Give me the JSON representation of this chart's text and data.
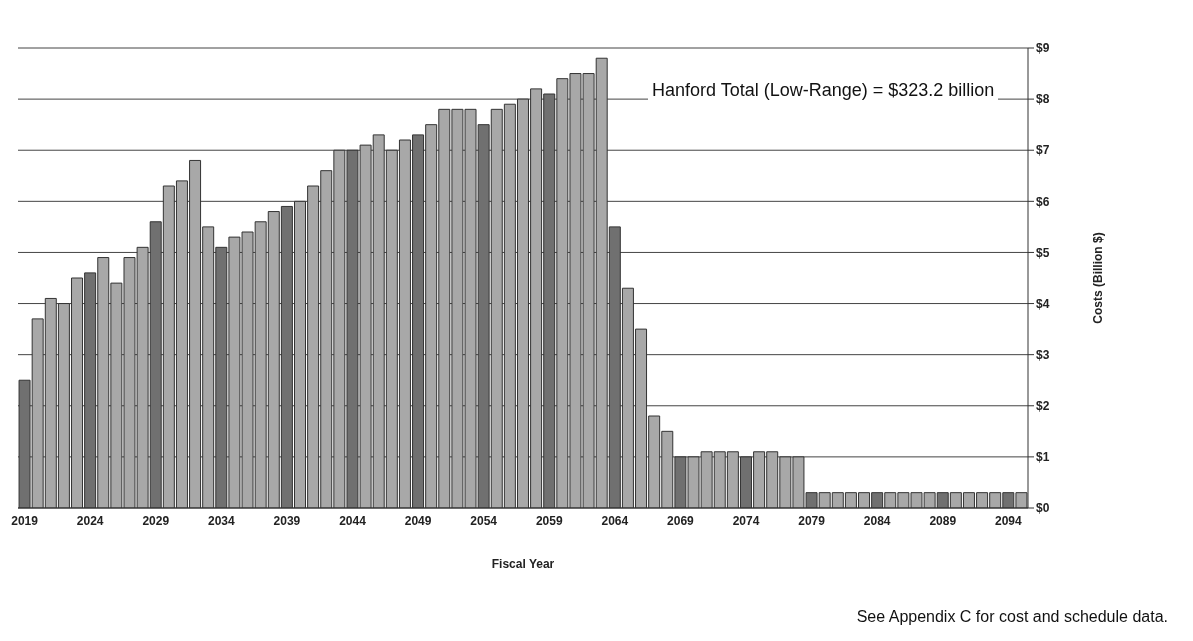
{
  "chart_data": {
    "type": "bar",
    "xlabel": "Fiscal Year",
    "ylabel": "Costs (Billion $)",
    "annotations": [
      "Hanford Total (Low-Range) = $323.2 billion",
      "See Appendix C for cost and schedule data."
    ],
    "categories": [
      "2019",
      null,
      null,
      null,
      null,
      "2024",
      null,
      null,
      null,
      null,
      "2029",
      null,
      null,
      null,
      null,
      "2034",
      null,
      null,
      null,
      null,
      "2039",
      null,
      null,
      null,
      null,
      "2044",
      null,
      null,
      null,
      null,
      "2049",
      null,
      null,
      null,
      null,
      "2054",
      null,
      null,
      null,
      null,
      "2059",
      null,
      null,
      null,
      null,
      "2064",
      null,
      null,
      null,
      null,
      "2069",
      null,
      null,
      null,
      null,
      "2074",
      null,
      null,
      null,
      null,
      "2079",
      null,
      null,
      null,
      null,
      "2084",
      null,
      null,
      null,
      null,
      "2089",
      null,
      null,
      null,
      null,
      "2094",
      null
    ],
    "values": [
      2.5,
      3.7,
      4.1,
      4.0,
      4.5,
      4.6,
      4.9,
      4.4,
      4.9,
      5.1,
      5.6,
      6.3,
      6.4,
      6.8,
      5.5,
      5.1,
      5.3,
      5.4,
      5.6,
      5.8,
      5.9,
      6.0,
      6.3,
      6.6,
      7.0,
      7.0,
      7.1,
      7.3,
      7.0,
      7.2,
      7.3,
      7.5,
      7.8,
      7.8,
      7.8,
      7.5,
      7.8,
      7.9,
      8.0,
      8.2,
      8.1,
      8.4,
      8.5,
      8.5,
      8.8,
      5.5,
      4.3,
      3.5,
      1.8,
      1.5,
      1.0,
      1.0,
      1.1,
      1.1,
      1.1,
      1.0,
      1.1,
      1.1,
      1.0,
      1.0,
      0.3,
      0.3,
      0.3,
      0.3,
      0.3,
      0.3,
      0.3,
      0.3,
      0.3,
      0.3,
      0.3,
      0.3,
      0.3,
      0.3,
      0.3,
      0.3,
      0.3
    ],
    "colors": [
      "#707070",
      "#a8a8a8",
      "#a8a8a8",
      "#a8a8a8",
      "#a8a8a8",
      "#707070",
      "#a8a8a8",
      "#a8a8a8",
      "#a8a8a8",
      "#a8a8a8",
      "#707070",
      "#a8a8a8",
      "#a8a8a8",
      "#a8a8a8",
      "#a8a8a8",
      "#707070",
      "#a8a8a8",
      "#a8a8a8",
      "#a8a8a8",
      "#a8a8a8",
      "#707070",
      "#a8a8a8",
      "#a8a8a8",
      "#a8a8a8",
      "#a8a8a8",
      "#707070",
      "#a8a8a8",
      "#a8a8a8",
      "#a8a8a8",
      "#a8a8a8",
      "#707070",
      "#a8a8a8",
      "#a8a8a8",
      "#a8a8a8",
      "#a8a8a8",
      "#707070",
      "#a8a8a8",
      "#a8a8a8",
      "#a8a8a8",
      "#a8a8a8",
      "#707070",
      "#a8a8a8",
      "#a8a8a8",
      "#a8a8a8",
      "#a8a8a8",
      "#707070",
      "#a8a8a8",
      "#a8a8a8",
      "#a8a8a8",
      "#a8a8a8",
      "#707070",
      "#a8a8a8",
      "#a8a8a8",
      "#a8a8a8",
      "#a8a8a8",
      "#707070",
      "#a8a8a8",
      "#a8a8a8",
      "#a8a8a8",
      "#a8a8a8",
      "#707070",
      "#a8a8a8",
      "#a8a8a8",
      "#a8a8a8",
      "#a8a8a8",
      "#707070",
      "#a8a8a8",
      "#a8a8a8",
      "#a8a8a8",
      "#a8a8a8",
      "#707070",
      "#a8a8a8",
      "#a8a8a8",
      "#a8a8a8",
      "#a8a8a8",
      "#707070",
      "#a8a8a8"
    ],
    "ylim": [
      0,
      9
    ],
    "yticks": [
      {
        "value": 0,
        "label": "$0"
      },
      {
        "value": 1,
        "label": "$1"
      },
      {
        "value": 2,
        "label": "$2"
      },
      {
        "value": 3,
        "label": "$3"
      },
      {
        "value": 4,
        "label": "$4"
      },
      {
        "value": 5,
        "label": "$5"
      },
      {
        "value": 6,
        "label": "$6"
      },
      {
        "value": 7,
        "label": "$7"
      },
      {
        "value": 8,
        "label": "$8"
      },
      {
        "value": 9,
        "label": "$9"
      }
    ],
    "grid": "y"
  }
}
